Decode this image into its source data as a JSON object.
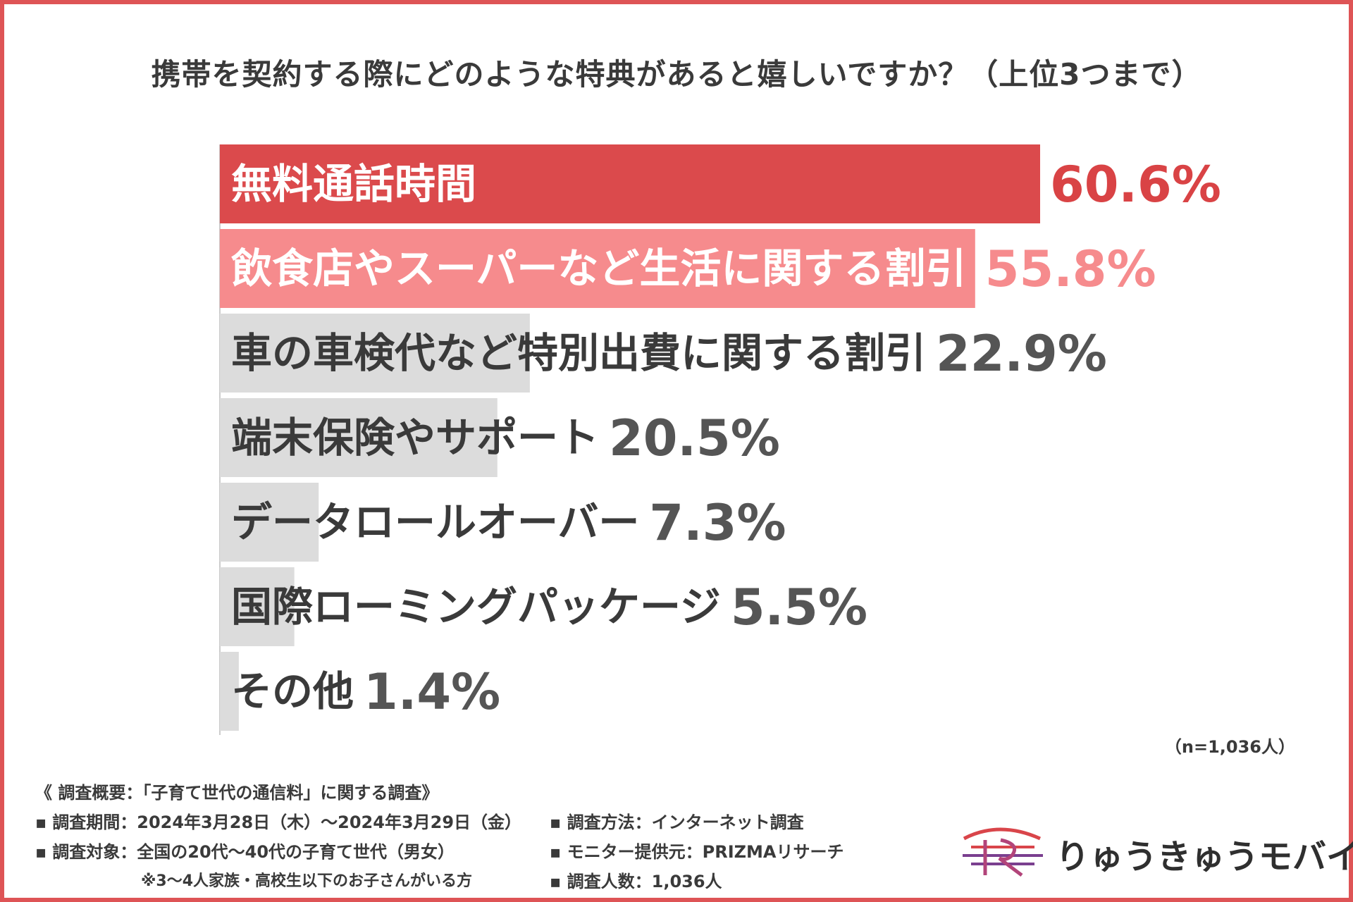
{
  "chart_data": {
    "type": "bar",
    "title": "携帯を契約する際にどのような特典があると嬉しいですか？（上位3つまで）",
    "categories": [
      "無料通話時間",
      "飲食店やスーパーなど生活に関する割引",
      "車の車検代など特別出費に関する割引",
      "端末保険やサポート",
      "データロールオーバー",
      "国際ローミングパッケージ",
      "その他"
    ],
    "values": [
      60.6,
      55.8,
      22.9,
      20.5,
      7.3,
      5.5,
      1.4
    ],
    "value_labels": [
      "60.6%",
      "55.8%",
      "22.9%",
      "20.5%",
      "7.3%",
      "5.5%",
      "1.4%"
    ],
    "bar_colors": [
      "#db4a4c",
      "#f68b8d",
      "#dcdcdc",
      "#dcdcdc",
      "#dcdcdc",
      "#dcdcdc",
      "#dcdcdc"
    ],
    "label_colors": [
      "#ffffff",
      "#ffffff",
      "#3a3a3a",
      "#3a3a3a",
      "#3a3a3a",
      "#3a3a3a",
      "#3a3a3a"
    ],
    "value_colors": [
      "#d94345",
      "#f68b8d",
      "#555555",
      "#555555",
      "#555555",
      "#555555",
      "#555555"
    ],
    "orientation": "horizontal",
    "xlim": [
      0,
      100
    ],
    "grid": false
  },
  "sample_size": "（n=1,036人）",
  "survey": {
    "heading": "《 調査概要：「子育て世代の通信料」に関する調査》",
    "period": "調査期間：2024年3月28日（木）～2024年3月29日（金）",
    "target": "調査対象：全国の20代～40代の子育て世代（男女）",
    "note": "※3～4人家族・高校生以下のお子さんがいる方",
    "method": "調査方法：インターネット調査",
    "provider": "モニター提供元：PRIZMAリサーチ",
    "count": "調査人数：1,036人"
  },
  "logo": {
    "text": "りゅうきゅうモバイル",
    "colors": [
      "#d9454a",
      "#7a3f8f"
    ]
  }
}
